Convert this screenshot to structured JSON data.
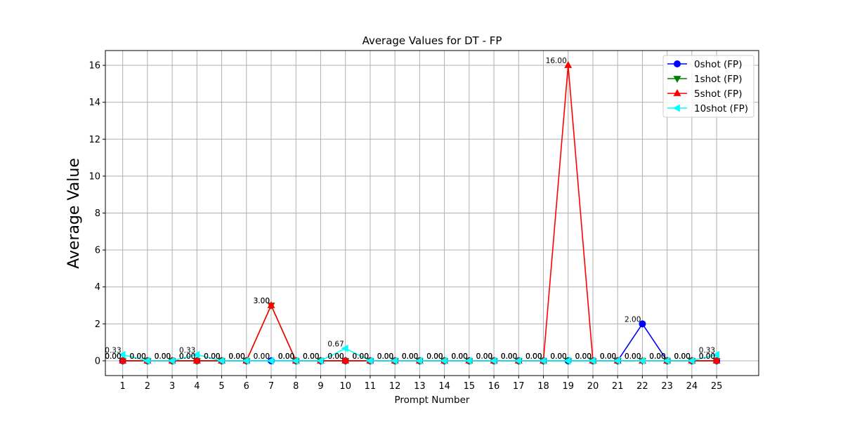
{
  "chart_data": {
    "type": "line",
    "title": "Average Values for DT - FP",
    "xlabel": "Prompt Number",
    "ylabel": "Average Value",
    "x": [
      1,
      2,
      3,
      4,
      5,
      6,
      7,
      8,
      9,
      10,
      11,
      12,
      13,
      14,
      15,
      16,
      17,
      18,
      19,
      20,
      21,
      22,
      23,
      24,
      25
    ],
    "x_tick_labels": [
      "1",
      "2",
      "3",
      "4",
      "5",
      "6",
      "7",
      "8",
      "9",
      "10",
      "11",
      "12",
      "13",
      "14",
      "15",
      "16",
      "17",
      "18",
      "19",
      "20",
      "21",
      "22",
      "23",
      "24",
      "25"
    ],
    "ylim": [
      -0.8,
      16.8
    ],
    "y_ticks": [
      0,
      2,
      4,
      6,
      8,
      10,
      12,
      14,
      16
    ],
    "y_tick_labels": [
      "0",
      "2",
      "4",
      "6",
      "8",
      "10",
      "12",
      "14",
      "16"
    ],
    "grid": true,
    "legend_position": "top-right",
    "series": [
      {
        "name": "0shot (FP)",
        "color": "#0000ff",
        "marker": "circle",
        "values": [
          0,
          0,
          0,
          0,
          0,
          0,
          0,
          0,
          0,
          0,
          0,
          0,
          0,
          0,
          0,
          0,
          0,
          0,
          0,
          0,
          0,
          2,
          0,
          0,
          0
        ]
      },
      {
        "name": "1shot (FP)",
        "color": "#008000",
        "marker": "triangle-down",
        "values": [
          0,
          0,
          0,
          0,
          0,
          0,
          3,
          0,
          0,
          0,
          0,
          0,
          0,
          0,
          0,
          0,
          0,
          0,
          0,
          0,
          0,
          0,
          0,
          0,
          0
        ]
      },
      {
        "name": "5shot (FP)",
        "color": "#ff0000",
        "marker": "triangle-up",
        "values": [
          0,
          0,
          0,
          0,
          0,
          0,
          3,
          0,
          0,
          0,
          0,
          0,
          0,
          0,
          0,
          0,
          0,
          0,
          16,
          0,
          0,
          0,
          0,
          0,
          0
        ]
      },
      {
        "name": "10shot (FP)",
        "color": "#00ffff",
        "marker": "triangle-left",
        "values": [
          0.33,
          0,
          0,
          0.33,
          0,
          0,
          0,
          0,
          0,
          0.67,
          0,
          0,
          0,
          0,
          0,
          0,
          0,
          0,
          0,
          0,
          0,
          0,
          0,
          0,
          0.33
        ]
      }
    ],
    "data_labels": [
      "0.00",
      "0.33",
      "2.00",
      "3.00",
      "16.00",
      "0.67"
    ]
  }
}
